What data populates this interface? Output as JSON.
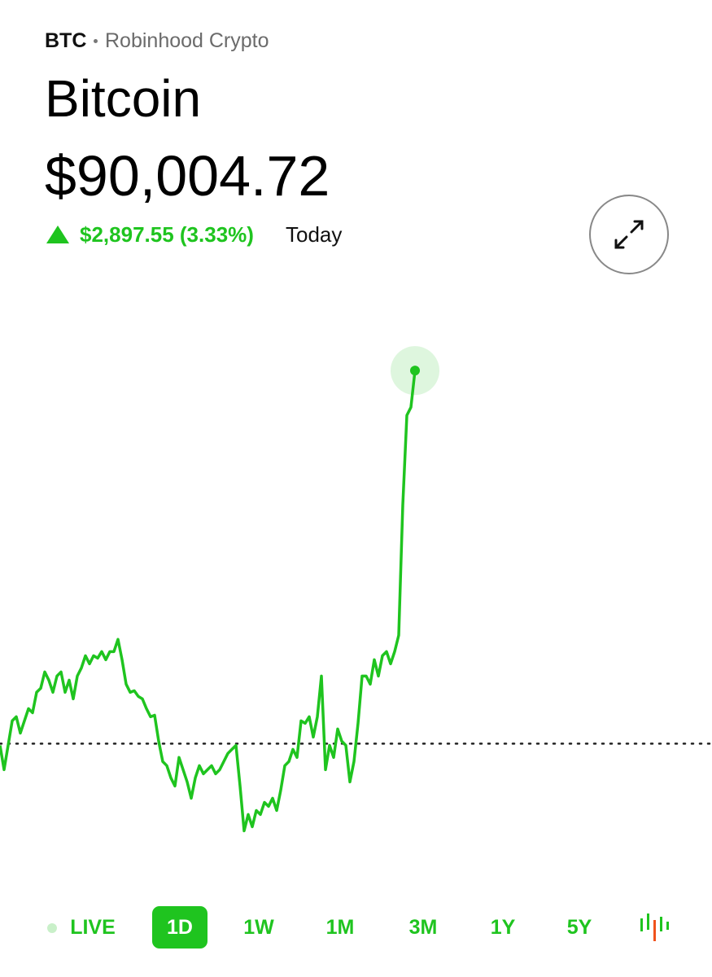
{
  "header": {
    "symbol": "BTC",
    "source": "Robinhood Crypto",
    "name": "Bitcoin",
    "price": "$90,004.72",
    "change": "$2,897.55 (3.33%)",
    "period": "Today"
  },
  "chart_data": {
    "type": "line",
    "color": "#1fc41f",
    "ylim": [
      86180,
      90480
    ],
    "reference": 87107.17,
    "series": [
      {
        "values": [
          87094,
          86905,
          87094,
          87284,
          87316,
          87189,
          87284,
          87379,
          87347,
          87506,
          87537,
          87664,
          87600,
          87506,
          87632,
          87664,
          87506,
          87600,
          87455,
          87632,
          87695,
          87790,
          87727,
          87790,
          87771,
          87822,
          87759,
          87822,
          87822,
          87917,
          87759,
          87569,
          87506,
          87518,
          87474,
          87455,
          87379,
          87316,
          87328,
          87126,
          86968,
          86936,
          86841,
          86778,
          87000,
          86905,
          86810,
          86683,
          86841,
          86936,
          86873,
          86905,
          86936,
          86873,
          86905,
          86968,
          87031,
          87063,
          87094,
          86778,
          86430,
          86557,
          86462,
          86588,
          86557,
          86651,
          86620,
          86683,
          86588,
          86746,
          86936,
          86968,
          87063,
          87000,
          87284,
          87265,
          87316,
          87158,
          87316,
          87632,
          86905,
          87094,
          87000,
          87221,
          87126,
          87094,
          86810,
          86968,
          87265,
          87632,
          87632,
          87569,
          87759,
          87632,
          87790,
          87822,
          87727,
          87822,
          87949,
          88961,
          89657,
          89720,
          90004.72
        ]
      }
    ]
  },
  "ranges": {
    "items": [
      "LIVE",
      "1D",
      "1W",
      "1M",
      "3M",
      "1Y",
      "5Y"
    ],
    "selected": 1
  }
}
